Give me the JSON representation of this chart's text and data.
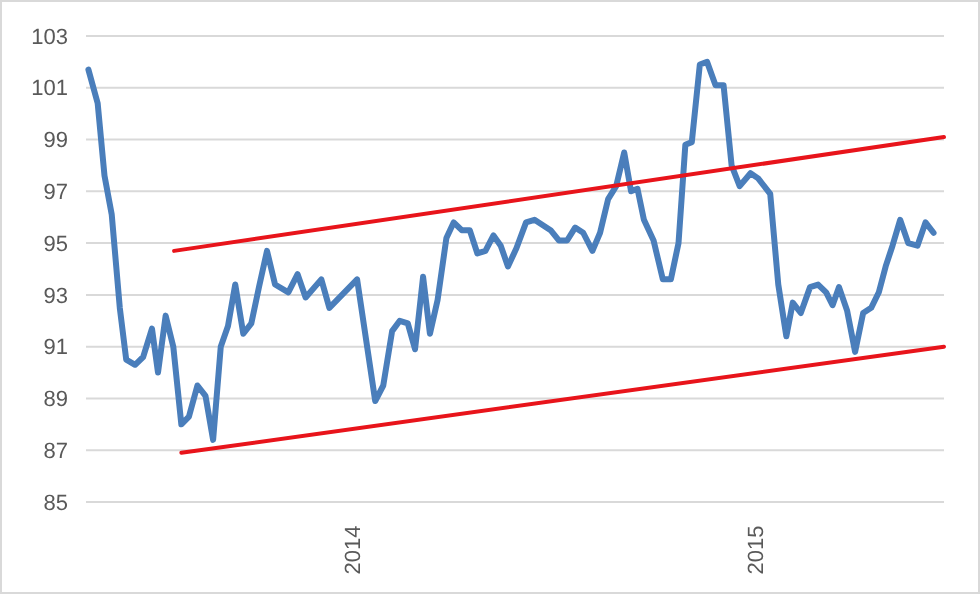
{
  "chart_data": {
    "type": "line",
    "xlim": [
      2013.337,
      2015.47
    ],
    "xticks": [
      2014,
      2015
    ],
    "ylim": [
      85,
      103
    ],
    "yticks": [
      85,
      87,
      89,
      91,
      93,
      95,
      97,
      99,
      101,
      103
    ],
    "grid": "y",
    "line_style": "solid",
    "marker": "none",
    "series": [
      {
        "color": "#4a7ebb",
        "x": [
          2013.343,
          2013.366,
          2013.383,
          2013.401,
          2013.421,
          2013.437,
          2013.459,
          2013.479,
          2013.501,
          2013.516,
          2013.535,
          2013.554,
          2013.574,
          2013.593,
          2013.614,
          2013.634,
          2013.653,
          2013.672,
          2013.69,
          2013.708,
          2013.728,
          2013.748,
          2013.767,
          2013.787,
          2013.807,
          2013.84,
          2013.863,
          2013.883,
          2013.922,
          2013.942,
          2014.011,
          2014.056,
          2014.076,
          2014.098,
          2014.117,
          2014.137,
          2014.155,
          2014.175,
          2014.192,
          2014.211,
          2014.233,
          2014.251,
          2014.271,
          2014.291,
          2014.31,
          2014.33,
          2014.35,
          2014.368,
          2014.386,
          2014.407,
          2014.431,
          2014.452,
          2014.472,
          2014.492,
          2014.513,
          2014.533,
          2014.553,
          2014.573,
          2014.596,
          2014.615,
          2014.635,
          2014.655,
          2014.675,
          2014.692,
          2014.708,
          2014.724,
          2014.748,
          2014.771,
          2014.791,
          2014.81,
          2014.827,
          2014.843,
          2014.863,
          2014.881,
          2014.902,
          2014.922,
          2014.942,
          2014.962,
          2014.989,
          2015.008,
          2015.038,
          2015.058,
          2015.078,
          2015.094,
          2015.114,
          2015.137,
          2015.157,
          2015.177,
          2015.193,
          2015.209,
          2015.229,
          2015.249,
          2015.269,
          2015.289,
          2015.308,
          2015.325,
          2015.342,
          2015.361,
          2015.381,
          2015.404,
          2015.424,
          2015.444
        ],
        "values": [
          101.7,
          100.4,
          97.6,
          96.1,
          92.5,
          90.5,
          90.3,
          90.6,
          91.7,
          90.0,
          92.2,
          91.0,
          88.0,
          88.3,
          89.5,
          89.1,
          87.4,
          91.0,
          91.8,
          93.4,
          91.5,
          91.9,
          93.3,
          94.7,
          93.4,
          93.1,
          93.8,
          92.9,
          93.6,
          92.5,
          93.6,
          88.9,
          89.5,
          91.6,
          92.0,
          91.9,
          90.9,
          93.7,
          91.5,
          92.8,
          95.2,
          95.8,
          95.5,
          95.5,
          94.6,
          94.7,
          95.3,
          94.9,
          94.1,
          94.8,
          95.8,
          95.9,
          95.7,
          95.5,
          95.1,
          95.1,
          95.6,
          95.4,
          94.7,
          95.4,
          96.7,
          97.2,
          98.5,
          97.0,
          97.1,
          95.9,
          95.1,
          93.6,
          93.6,
          95.0,
          98.8,
          98.9,
          101.9,
          102.0,
          101.1,
          101.1,
          98.0,
          97.2,
          97.7,
          97.5,
          96.9,
          93.4,
          91.4,
          92.7,
          92.3,
          93.3,
          93.4,
          93.1,
          92.6,
          93.3,
          92.4,
          90.8,
          92.3,
          92.5,
          93.1,
          94.1,
          94.9,
          95.9,
          95.0,
          94.9,
          95.8,
          95.4
        ]
      },
      {
        "color": "#e8141b",
        "x": [
          2013.556,
          2015.47
        ],
        "values": [
          94.7,
          99.1
        ]
      },
      {
        "color": "#e8141b",
        "x": [
          2013.574,
          2015.47
        ],
        "values": [
          86.9,
          91.0
        ]
      }
    ]
  }
}
